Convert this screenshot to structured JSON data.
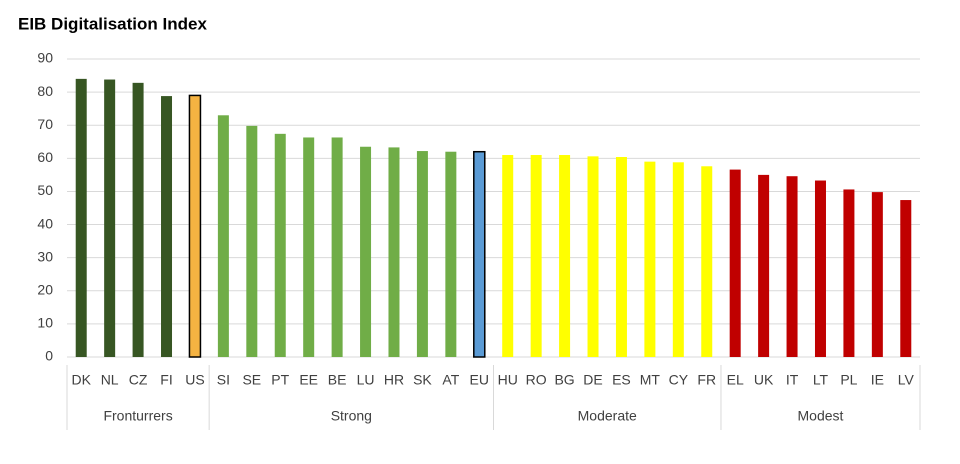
{
  "chart_data": {
    "type": "bar",
    "title": "EIB Digitalisation Index",
    "ylim": [
      0,
      90
    ],
    "yticks": [
      0,
      10,
      20,
      30,
      40,
      50,
      60,
      70,
      80,
      90
    ],
    "grid": true,
    "groups": [
      {
        "name": "Fronturrers",
        "categories": [
          "DK",
          "NL",
          "CZ",
          "FI",
          "US"
        ],
        "values": [
          84,
          83.8,
          82.8,
          78.8,
          79
        ],
        "colors": [
          "#375623",
          "#375623",
          "#375623",
          "#375623",
          "#f5b342"
        ],
        "edges": [
          null,
          null,
          null,
          null,
          "#000000"
        ]
      },
      {
        "name": "Strong",
        "categories": [
          "SI",
          "SE",
          "PT",
          "EE",
          "BE",
          "LU",
          "HR",
          "SK",
          "AT",
          "EU"
        ],
        "values": [
          73,
          69.8,
          67.4,
          66.3,
          66.3,
          63.5,
          63.3,
          62.2,
          62,
          62
        ],
        "colors": [
          "#70ad47",
          "#70ad47",
          "#70ad47",
          "#70ad47",
          "#70ad47",
          "#70ad47",
          "#70ad47",
          "#70ad47",
          "#70ad47",
          "#5b9bd5"
        ],
        "edges": [
          null,
          null,
          null,
          null,
          null,
          null,
          null,
          null,
          null,
          "#000000"
        ]
      },
      {
        "name": "Moderate",
        "categories": [
          "HU",
          "RO",
          "BG",
          "DE",
          "ES",
          "MT",
          "CY",
          "FR"
        ],
        "values": [
          61,
          61,
          61,
          60.6,
          60.4,
          59,
          58.8,
          57.6
        ],
        "colors": [
          "#ffff00",
          "#ffff00",
          "#ffff00",
          "#ffff00",
          "#ffff00",
          "#ffff00",
          "#ffff00",
          "#ffff00"
        ],
        "edges": [
          null,
          null,
          null,
          null,
          null,
          null,
          null,
          null
        ]
      },
      {
        "name": "Modest",
        "categories": [
          "EL",
          "UK",
          "IT",
          "LT",
          "PL",
          "IE",
          "LV"
        ],
        "values": [
          56.6,
          55,
          54.6,
          53.3,
          50.6,
          49.8,
          47.4
        ],
        "colors": [
          "#c00000",
          "#c00000",
          "#c00000",
          "#c00000",
          "#c00000",
          "#c00000",
          "#c00000"
        ],
        "edges": [
          null,
          null,
          null,
          null,
          null,
          null,
          null
        ]
      }
    ]
  }
}
